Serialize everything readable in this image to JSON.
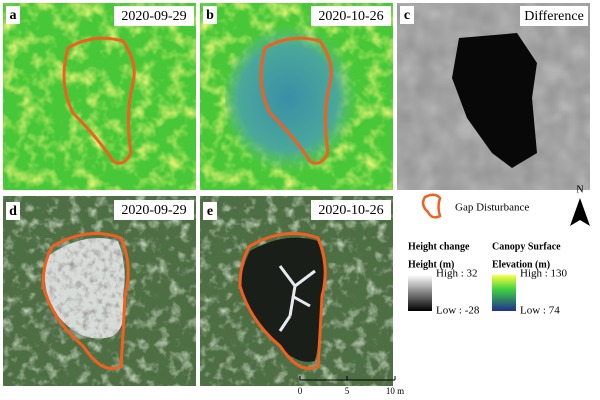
{
  "panels": [
    {
      "label": "a",
      "title": "2020-09-29"
    },
    {
      "label": "b",
      "title": "2020-10-26"
    },
    {
      "label": "c",
      "title": "Difference"
    },
    {
      "label": "d",
      "title": "2020-09-29"
    },
    {
      "label": "e",
      "title": "2020-10-26"
    }
  ],
  "legend": {
    "gap": "Gap Disturbance",
    "north": "N",
    "height_change": {
      "title": "Height change",
      "subtitle": "Height (m)",
      "high": "High : 32",
      "low": "Low : -28"
    },
    "canopy": {
      "title": "Canopy Surface",
      "subtitle": "Elevation (m)",
      "high": "High : 130",
      "low": "Low : 74"
    }
  },
  "scale_bar": {
    "ticks": [
      "0",
      "5",
      "10 m"
    ]
  }
}
